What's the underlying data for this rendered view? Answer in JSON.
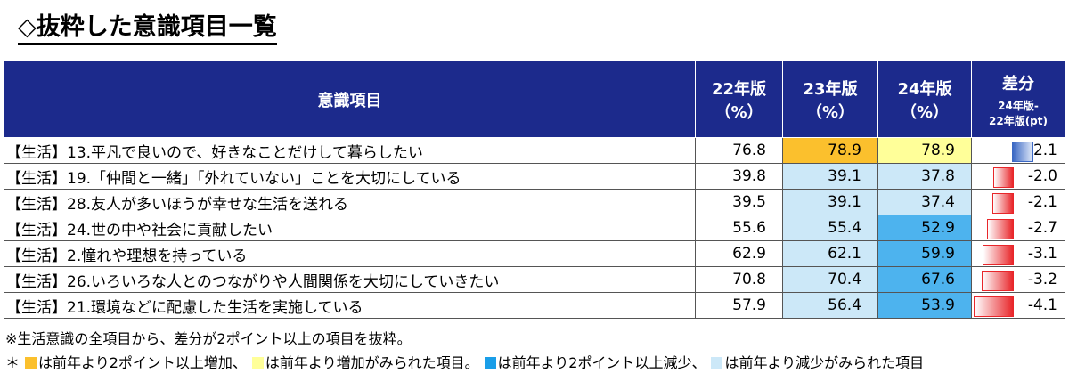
{
  "title": "◇抜粋した意識項目一覧",
  "table": {
    "header": {
      "item": "意識項目",
      "years": [
        {
          "year": "22年版",
          "unit": "（%）"
        },
        {
          "year": "23年版",
          "unit": "（%）"
        },
        {
          "year": "24年版",
          "unit": "（%）"
        }
      ],
      "diff": {
        "label": "差分",
        "sub1": "24年版-",
        "sub2": "22年版(pt)"
      }
    },
    "rows": [
      {
        "item": "【生活】13.平凡で良いので、好きなことだけして暮らしたい",
        "values": [
          "76.8",
          "78.9",
          "78.9"
        ],
        "colors": [
          null,
          "#fbc02d",
          "#ffff99"
        ],
        "diff": "2.1"
      },
      {
        "item": "【生活】19.「仲間と一緒」「外れていない」ことを大切にしている",
        "values": [
          "39.8",
          "39.1",
          "37.8"
        ],
        "colors": [
          null,
          "#cce8f8",
          "#cce8f8"
        ],
        "diff": "-2.0"
      },
      {
        "item": "【生活】28.友人が多いほうが幸せな生活を送れる",
        "values": [
          "39.5",
          "39.1",
          "37.4"
        ],
        "colors": [
          null,
          "#cce8f8",
          "#cce8f8"
        ],
        "diff": "-2.1"
      },
      {
        "item": "【生活】24.世の中や社会に貢献したい",
        "values": [
          "55.6",
          "55.4",
          "52.9"
        ],
        "colors": [
          null,
          "#cce8f8",
          "#4db3ee"
        ],
        "diff": "-2.7"
      },
      {
        "item": "【生活】2.憧れや理想を持っている",
        "values": [
          "62.9",
          "62.1",
          "59.9"
        ],
        "colors": [
          null,
          "#cce8f8",
          "#4db3ee"
        ],
        "diff": "-3.1"
      },
      {
        "item": "【生活】26.いろいろな人とのつながりや人間関係を大切にしていきたい",
        "values": [
          "70.8",
          "70.4",
          "67.6"
        ],
        "colors": [
          null,
          "#cce8f8",
          "#4db3ee"
        ],
        "diff": "-3.2"
      },
      {
        "item": "【生活】21.環境などに配慮した生活を実施している",
        "values": [
          "57.9",
          "56.4",
          "53.9"
        ],
        "colors": [
          null,
          "#cce8f8",
          "#4db3ee"
        ],
        "diff": "-4.1"
      }
    ]
  },
  "note": "※生活意識の全項目から、差分が2ポイント以上の項目を抜粋。",
  "legend": {
    "prefix": "＊",
    "items": [
      {
        "color": "#fbc02d",
        "text": "は前年より2ポイント以上増加、"
      },
      {
        "color": "#ffff99",
        "text": "は前年より増加がみられた項目。"
      },
      {
        "color": "#1a9ee8",
        "text": "は前年より2ポイント以上減少、"
      },
      {
        "color": "#cce8f8",
        "text": "は前年より減少がみられた項目"
      }
    ]
  }
}
